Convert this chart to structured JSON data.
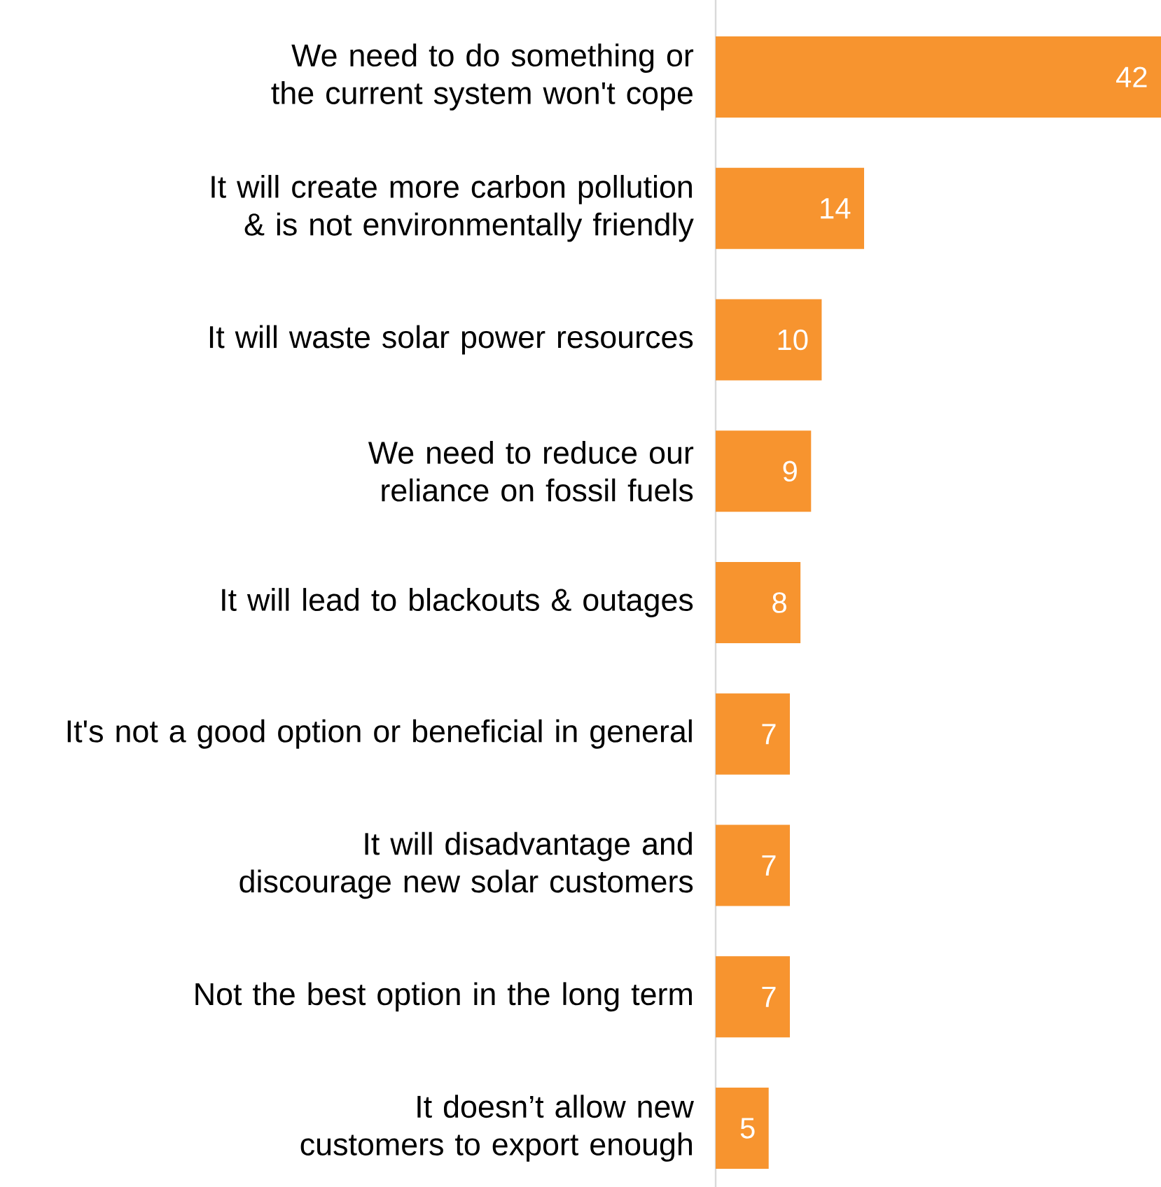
{
  "chart_data": {
    "type": "bar",
    "orientation": "horizontal",
    "data_labels": true,
    "color": "#f7942f",
    "categories": [
      "We need to do something or the current system won't cope",
      "It will create more carbon pollution & is not environmentally friendly",
      "It will waste solar power resources",
      "We need to reduce our reliance on fossil fuels",
      "It will lead to blackouts & outages",
      "It's not a good option or beneficial in general",
      "It will disadvantage and discourage new solar customers",
      "Not the best option in the long term",
      "It doesn’t allow new customers to export enough"
    ],
    "values": [
      42,
      14,
      10,
      9,
      8,
      7,
      7,
      7,
      5
    ]
  }
}
